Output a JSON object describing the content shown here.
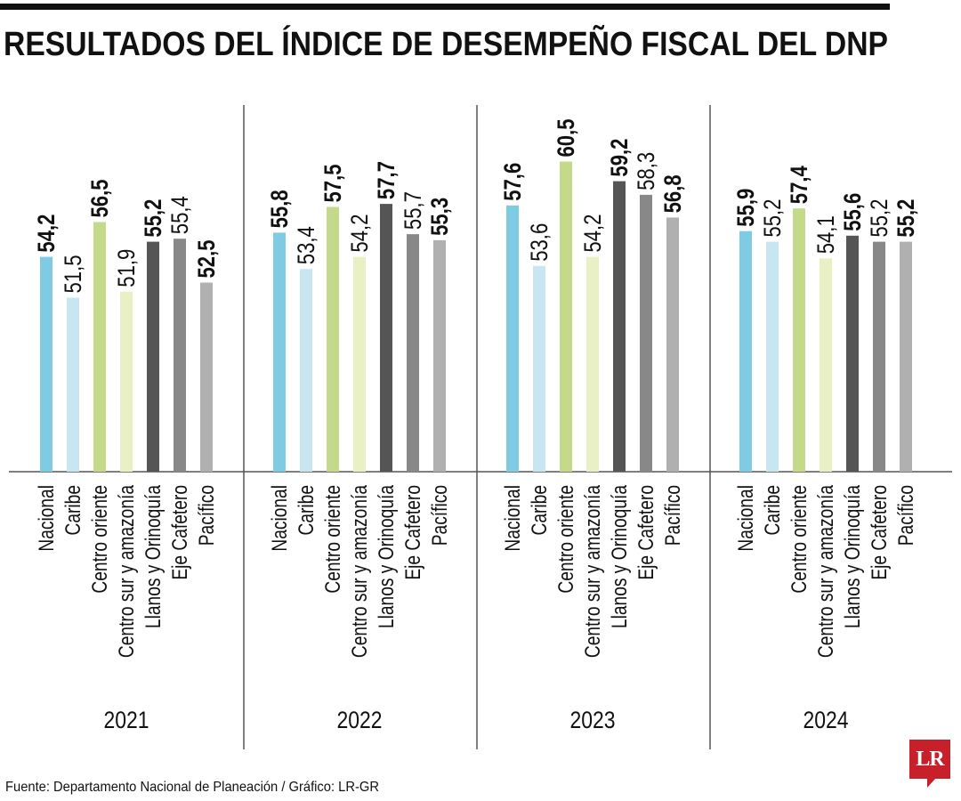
{
  "chart_data": {
    "type": "bar",
    "title": "RESULTADOS DEL ÍNDICE DE DESEMPEÑO FISCAL DEL DNP",
    "source": "Fuente: Departamento Nacional de Planeación / Gráfico: LR-GR",
    "logo": "LR",
    "categories": [
      "Nacional",
      "Caribe",
      "Centro oriente",
      "Centro sur y amazonía",
      "Llanos y Orinoquía",
      "Eje Cafetero",
      "Pacífico"
    ],
    "colors": [
      "#7ecbe3",
      "#c8e6f1",
      "#c5d98a",
      "#e9f0c4",
      "#555555",
      "#888888",
      "#b0b0b0"
    ],
    "ylim": [
      40,
      61
    ],
    "grid": false,
    "groups": [
      {
        "year": "2021",
        "values": [
          54.2,
          51.5,
          56.5,
          51.9,
          55.2,
          55.4,
          52.5
        ],
        "labels": [
          "54,2",
          "51,5",
          "56,5",
          "51,9",
          "55,2",
          "55,4",
          "52,5"
        ]
      },
      {
        "year": "2022",
        "values": [
          55.8,
          53.4,
          57.5,
          54.2,
          57.7,
          55.7,
          55.3
        ],
        "labels": [
          "55,8",
          "53,4",
          "57,5",
          "54,2",
          "57,7",
          "55,7",
          "55,3"
        ]
      },
      {
        "year": "2023",
        "values": [
          57.6,
          53.6,
          60.5,
          54.2,
          59.2,
          58.3,
          56.8
        ],
        "labels": [
          "57,6",
          "53,6",
          "60,5",
          "54,2",
          "59,2",
          "58,3",
          "56,8"
        ]
      },
      {
        "year": "2024",
        "values": [
          55.9,
          55.2,
          57.4,
          54.1,
          55.6,
          55.2,
          55.2
        ],
        "labels": [
          "55,9",
          "55,2",
          "57,4",
          "54,1",
          "55,6",
          "55,2",
          "55,2"
        ]
      }
    ]
  }
}
